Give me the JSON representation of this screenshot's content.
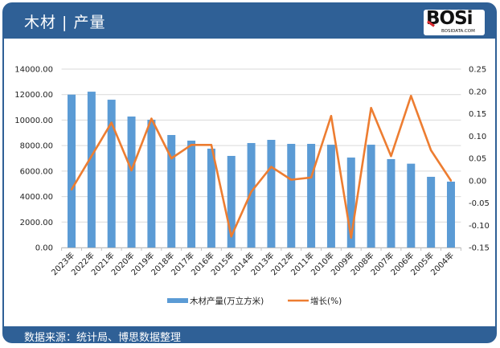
{
  "header": {
    "title": "木材 | 产量",
    "logo_text": "BOSi",
    "logo_subtext": "BOSIDATA.COM"
  },
  "footer": {
    "source": "数据来源：统计局、博思数据整理"
  },
  "colors": {
    "frame": "#2f6096",
    "bar": "#5b9bd5",
    "line": "#ed7d31",
    "grid": "#d9d9d9"
  },
  "chart_data": {
    "type": "bar+line",
    "categories": [
      "2023年",
      "2022年",
      "2021年",
      "2020年",
      "2019年",
      "2018年",
      "2017年",
      "2016年",
      "2015年",
      "2014年",
      "2013年",
      "2012年",
      "2011年",
      "2010年",
      "2009年",
      "2008年",
      "2007年",
      "2006年",
      "2005年",
      "2004年"
    ],
    "series": [
      {
        "name": "木材产量(万立方米)",
        "type": "bar",
        "axis": "left",
        "values": [
          12000,
          12230,
          11600,
          10280,
          10030,
          8830,
          8390,
          7760,
          7190,
          8200,
          8450,
          8135,
          8135,
          8070,
          7060,
          8070,
          6940,
          6580,
          5550,
          5170
        ]
      },
      {
        "name": "增长(%)",
        "type": "line",
        "axis": "right",
        "values": [
          -0.02,
          0.055,
          0.13,
          0.023,
          0.139,
          0.05,
          0.08,
          0.08,
          -0.125,
          -0.025,
          0.031,
          0.002,
          0.007,
          0.145,
          -0.128,
          0.163,
          0.055,
          0.19,
          0.068,
          0.0
        ]
      }
    ],
    "y_left": {
      "range": [
        0,
        14000
      ],
      "ticks": [
        "0.00",
        "2000.00",
        "4000.00",
        "6000.00",
        "8000.00",
        "10000.00",
        "12000.00",
        "14000.00"
      ]
    },
    "y_right": {
      "range": [
        -0.15,
        0.25
      ],
      "ticks": [
        "-0.15",
        "-0.10",
        "-0.05",
        "0.00",
        "0.05",
        "0.10",
        "0.15",
        "0.20",
        "0.25"
      ]
    },
    "grid": true,
    "legend": "bottom"
  }
}
